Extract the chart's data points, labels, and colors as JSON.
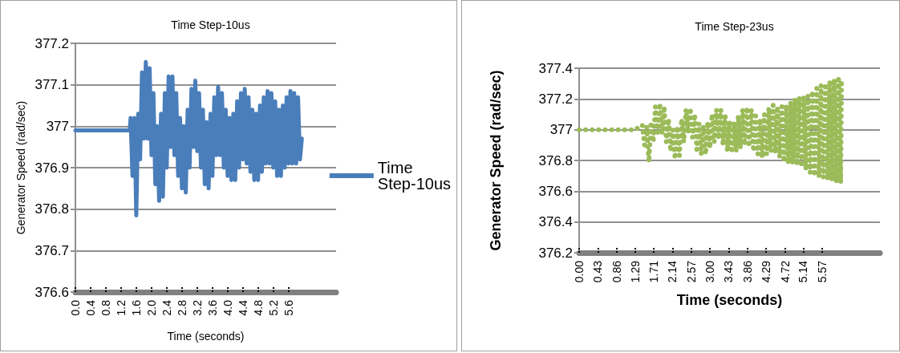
{
  "chart_data": [
    {
      "type": "line",
      "title": "Time Step-10us",
      "xlabel": "Time (seconds)",
      "ylabel": "Generator Speed (rad/sec)",
      "xlim": [
        0,
        6.85
      ],
      "xticks": [
        {
          "value": 0,
          "label": "0.0"
        },
        0.4,
        0.8,
        1.2,
        1.6,
        {
          "value": 2,
          "label": "2.0"
        },
        2.4,
        2.8,
        3.2,
        3.6,
        {
          "value": 4,
          "label": "4.0"
        },
        4.4,
        4.8,
        5.2,
        5.6
      ],
      "ylim": [
        376.6,
        377.2
      ],
      "yticks": [
        376.6,
        376.7,
        376.8,
        376.9,
        377,
        377.1,
        377.2
      ],
      "grid": "y",
      "legend": "right",
      "marker": "none",
      "line_style": "solid",
      "series": [
        {
          "name": "Time Step-10us",
          "color": "#4a7ebb",
          "x": [
            0,
            1.43,
            1.45,
            1.5,
            1.55,
            1.6,
            1.65,
            1.7,
            1.75,
            1.8,
            1.85,
            1.9,
            1.95,
            2.0,
            2.05,
            2.1,
            2.15,
            2.2,
            2.25,
            2.3,
            2.35,
            2.4,
            2.45,
            2.5,
            2.55,
            2.6,
            2.65,
            2.7,
            2.75,
            2.8,
            2.85,
            2.9,
            2.95,
            3.0,
            3.05,
            3.1,
            3.15,
            3.2,
            3.25,
            3.3,
            3.35,
            3.4,
            3.45,
            3.5,
            3.55,
            3.6,
            3.65,
            3.7,
            3.75,
            3.8,
            3.85,
            3.9,
            3.95,
            4.0,
            4.05,
            4.1,
            4.15,
            4.2,
            4.25,
            4.3,
            4.35,
            4.4,
            4.45,
            4.5,
            4.55,
            4.6,
            4.65,
            4.7,
            4.75,
            4.8,
            4.85,
            4.9,
            4.95,
            5.0,
            5.05,
            5.1,
            5.15,
            5.2,
            5.25,
            5.3,
            5.35,
            5.4,
            5.45,
            5.5,
            5.55,
            5.6,
            5.65,
            5.7,
            5.75,
            5.8,
            5.85,
            5.9,
            5.95
          ],
          "values": [
            376.99,
            376.99,
            377.02,
            376.88,
            377.02,
            376.785,
            377.03,
            376.92,
            377.13,
            376.97,
            377.155,
            376.97,
            377.14,
            376.93,
            377.08,
            376.86,
            377.0,
            376.82,
            377.03,
            376.83,
            377.08,
            376.9,
            377.12,
            376.95,
            377.12,
            376.93,
            377.08,
            376.88,
            377.02,
            376.85,
            377.0,
            376.84,
            377.04,
            376.9,
            377.09,
            376.95,
            377.11,
            376.94,
            377.08,
            376.9,
            377.04,
            376.86,
            377.01,
            376.85,
            377.03,
            376.88,
            377.07,
            376.93,
            377.095,
            376.93,
            377.08,
            376.9,
            377.04,
            376.88,
            377.02,
            376.87,
            377.03,
            376.87,
            377.06,
            376.9,
            377.08,
            376.92,
            377.09,
            376.91,
            377.07,
            376.89,
            377.04,
            376.87,
            377.03,
            376.87,
            377.05,
            376.89,
            377.07,
            376.91,
            377.085,
            376.91,
            377.08,
            376.9,
            377.06,
            376.88,
            377.04,
            376.88,
            377.05,
            376.9,
            377.07,
            376.91,
            377.085,
            376.91,
            377.08,
            376.91,
            377.07,
            376.92,
            376.97
          ]
        }
      ]
    },
    {
      "type": "line",
      "title": "Time Step-23us",
      "xlabel": "Time (seconds)",
      "ylabel": "Generator Speed (rad/sec)",
      "xlim": [
        0,
        6.9
      ],
      "xticks": [
        {
          "value": 0,
          "label": "0.00"
        },
        0.43,
        0.86,
        1.29,
        1.71,
        2.14,
        2.57,
        {
          "value": 3,
          "label": "3.00"
        },
        3.43,
        3.86,
        4.29,
        4.72,
        5.14,
        5.57
      ],
      "ylim": [
        376.2,
        377.4
      ],
      "yticks": [
        376.2,
        376.4,
        376.6,
        376.8,
        377,
        377.2,
        377.4
      ],
      "grid": "y",
      "marker": "none",
      "line_style": "dotted",
      "series": [
        {
          "color": "#9bbb59",
          "x": [
            0,
            0.2,
            0.42,
            0.63,
            0.85,
            1.06,
            1.17,
            1.28,
            1.45,
            1.5,
            1.55,
            1.6,
            1.65,
            1.7,
            1.75,
            1.8,
            1.85,
            1.9,
            1.95,
            2.0,
            2.05,
            2.1,
            2.15,
            2.2,
            2.25,
            2.3,
            2.35,
            2.4,
            2.45,
            2.5,
            2.55,
            2.6,
            2.65,
            2.7,
            2.75,
            2.8,
            2.85,
            2.9,
            2.95,
            3.0,
            3.05,
            3.1,
            3.15,
            3.2,
            3.25,
            3.3,
            3.35,
            3.4,
            3.45,
            3.5,
            3.55,
            3.6,
            3.65,
            3.7,
            3.75,
            3.8,
            3.85,
            3.9,
            3.95,
            4.0,
            4.05,
            4.1,
            4.15,
            4.2,
            4.25,
            4.3,
            4.35,
            4.4,
            4.45,
            4.5,
            4.55,
            4.6,
            4.65,
            4.7,
            4.75,
            4.8,
            4.85,
            4.9,
            4.95,
            5.0,
            5.05,
            5.1,
            5.15,
            5.2,
            5.25,
            5.3,
            5.35,
            5.4,
            5.45,
            5.5,
            5.55,
            5.6,
            5.65,
            5.7,
            5.75,
            5.8,
            5.85,
            5.9,
            5.95,
            6.0,
            6.02
          ],
          "values": [
            377.0,
            377.0,
            377.0,
            377.0,
            377.0,
            377.0,
            377.0,
            377.0,
            377.03,
            376.9,
            377.02,
            376.79,
            377.05,
            376.92,
            377.15,
            376.98,
            377.17,
            376.97,
            377.15,
            376.92,
            377.07,
            376.86,
            377.0,
            376.81,
            377.02,
            376.83,
            377.07,
            376.92,
            377.13,
            376.98,
            377.14,
            376.95,
            377.1,
            376.87,
            377.04,
            376.84,
            377.02,
            376.84,
            377.05,
            376.88,
            377.1,
            376.92,
            377.13,
            376.94,
            377.13,
            376.9,
            377.09,
            376.86,
            377.05,
            376.85,
            377.05,
            376.86,
            377.09,
            376.88,
            377.13,
            376.9,
            377.145,
            376.89,
            377.13,
            376.86,
            377.09,
            376.84,
            377.07,
            376.82,
            377.1,
            376.84,
            377.14,
            376.86,
            377.16,
            376.85,
            377.15,
            376.82,
            377.15,
            376.79,
            377.16,
            376.78,
            377.18,
            376.78,
            377.2,
            376.77,
            377.21,
            376.76,
            377.22,
            376.74,
            377.22,
            376.72,
            377.25,
            376.7,
            377.27,
            376.69,
            377.29,
            376.69,
            377.3,
            376.68,
            377.32,
            376.67,
            377.33,
            376.66,
            377.345,
            376.655,
            377.31
          ]
        }
      ]
    }
  ]
}
